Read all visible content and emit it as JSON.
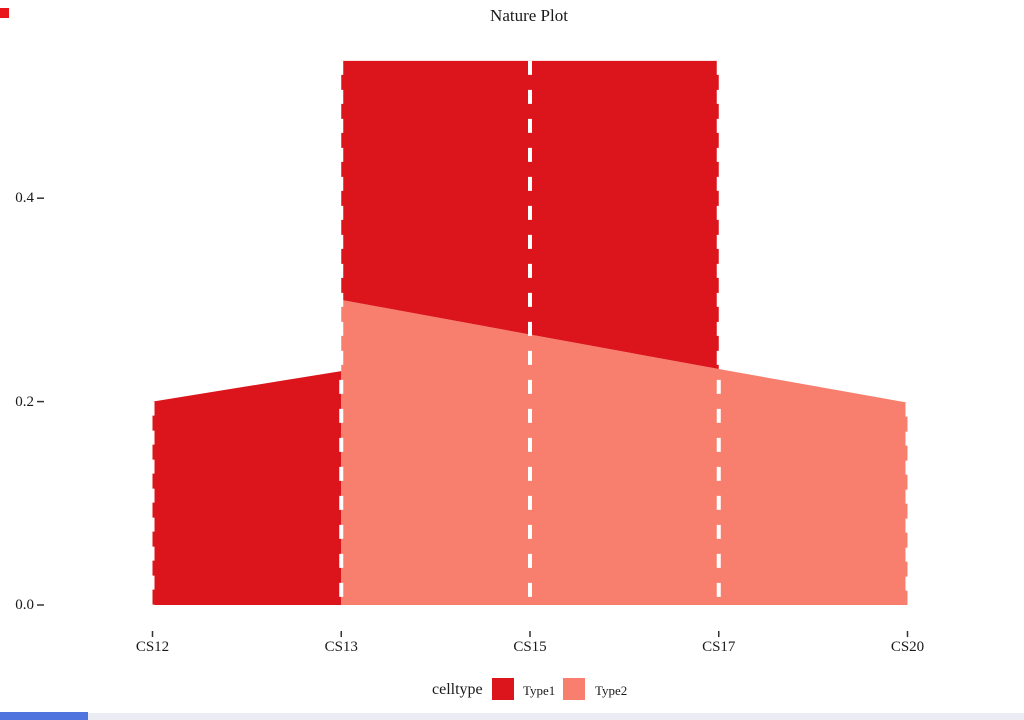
{
  "title": "Nature Plot",
  "chart_data": {
    "type": "area",
    "title": "Nature Plot",
    "categories": [
      "CS12",
      "CS13",
      "CS15",
      "CS17",
      "CS20"
    ],
    "series": [
      {
        "name": "Type1",
        "color": "#DC141B",
        "values": [
          0.2,
          0.23,
          0.27,
          0.3,
          null
        ]
      },
      {
        "name": "Type2",
        "color": "#F87F6E",
        "values": [
          null,
          0.3,
          0.265,
          0.232,
          0.199
        ]
      }
    ],
    "stacked_top": 0.535,
    "ylim": [
      0,
      0.56
    ],
    "yticks": [
      {
        "value": 0.4,
        "label": "0.4"
      },
      {
        "value": 0.2,
        "label": "0.2"
      },
      {
        "value": 0.0,
        "label": "0.0"
      }
    ],
    "grid": false,
    "legend": {
      "title": "celltype",
      "position": "bottom",
      "entries": [
        {
          "label": "Type1",
          "color": "#DC141B"
        },
        {
          "label": "Type2",
          "color": "#F87F6E"
        }
      ]
    },
    "polygons": [
      {
        "name": "area-type1-ribbon",
        "fill": "#DC141B",
        "points": [
          [
            0,
            0
          ],
          [
            0,
            0.2
          ],
          [
            1,
            0.23
          ],
          [
            1,
            0
          ]
        ]
      },
      {
        "name": "area-type2",
        "fill": "#F87F6E",
        "points": [
          [
            1,
            0
          ],
          [
            1,
            0.3
          ],
          [
            3,
            0.232
          ],
          [
            4,
            0.199
          ],
          [
            4,
            0
          ]
        ]
      },
      {
        "name": "area-type1-block",
        "fill": "#DC141B",
        "points": [
          [
            1,
            0.3
          ],
          [
            1,
            0.535
          ],
          [
            3,
            0.535
          ],
          [
            3,
            0.232
          ]
        ]
      }
    ],
    "dashed_lines": [
      {
        "category": 0,
        "from": 0,
        "to": 0.2
      },
      {
        "category": 1,
        "from": 0,
        "to": 0.535
      },
      {
        "category": 2,
        "from": 0,
        "to": 0.535
      },
      {
        "category": 3,
        "from": 0,
        "to": 0.535
      },
      {
        "category": 4,
        "from": 0,
        "to": 0.199
      }
    ],
    "dash_style": {
      "color": "#ffffff",
      "width": 4,
      "dash": 14,
      "gap": 15
    },
    "tick_color": "#333333"
  },
  "decorations": {
    "corner_square_color": "#E8151C",
    "bottom_strip_color": "#E9ECF2",
    "bottom_thumb_color": "#4F74DD"
  }
}
